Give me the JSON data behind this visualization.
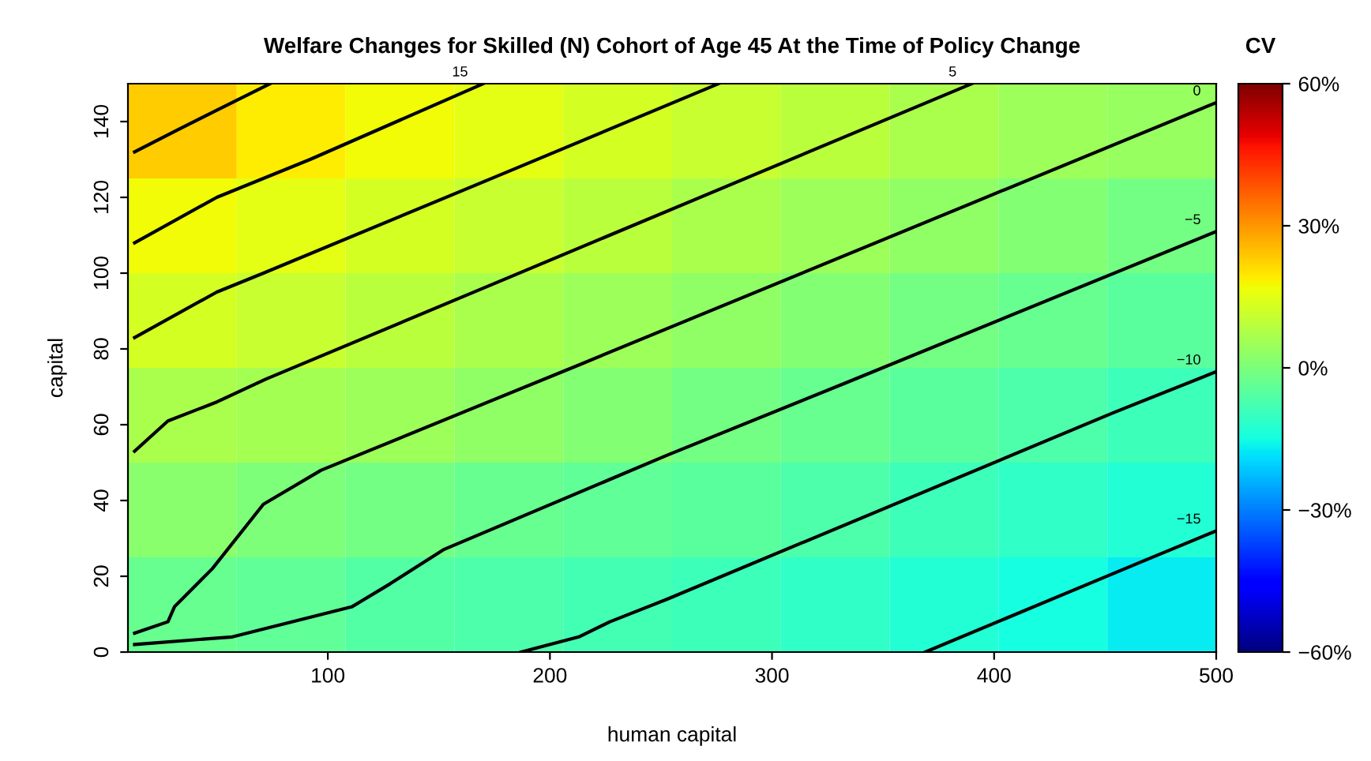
{
  "chart_data": [
    {
      "type": "heatmap",
      "clabel": "CV",
      "categories": [
        null,
        null,
        null,
        null,
        null,
        null,
        null,
        null,
        null,
        null
      ],
      "y_categories": [
        null,
        null,
        null,
        null,
        null,
        null
      ],
      "cells": [
        [
          23,
          19,
          17,
          15,
          13,
          11,
          9,
          7,
          5,
          4
        ],
        [
          17,
          15,
          13,
          11,
          9,
          7,
          5,
          3,
          1,
          -1
        ],
        [
          13,
          11,
          9,
          7,
          5,
          3,
          1,
          -1,
          -3,
          -5
        ],
        [
          7,
          6,
          5,
          3,
          1,
          -1,
          -3,
          -5,
          -7,
          -9
        ],
        [
          2,
          0,
          -1,
          -3,
          -4,
          -5,
          -7,
          -9,
          -11,
          -13
        ],
        [
          -3,
          -4,
          -6,
          -7,
          -8,
          -9,
          -11,
          -13,
          -15,
          -17
        ]
      ],
      "clim": [
        -60,
        60
      ],
      "cticks": [
        {
          "value": -60,
          "label": "−60%"
        },
        {
          "value": -30,
          "label": "−30%"
        },
        {
          "value": 0,
          "label": "0%"
        },
        {
          "value": 30,
          "label": "30%"
        },
        {
          "value": 60,
          "label": "60%"
        }
      ]
    },
    {
      "type": "line",
      "title": "Welfare Changes for Skilled (N) Cohort of Age 45 At the Time of Policy Change",
      "xlabel": "human capital",
      "ylabel": "capital",
      "xlim": [
        10,
        500
      ],
      "xticks": [
        100,
        200,
        300,
        400,
        500
      ],
      "ylim": [
        0,
        150
      ],
      "yticks": [
        0,
        20,
        40,
        60,
        80,
        100,
        120,
        140
      ],
      "grid": false,
      "legend": false,
      "marker": "none",
      "series": [
        {
          "color": "#000000",
          "x": [
            13,
            33,
            50,
            74
          ],
          "values": [
            132,
            138,
            143,
            150
          ]
        },
        {
          "name": "15",
          "color": "#000000",
          "x": [
            13,
            50,
            92,
            170
          ],
          "values": [
            108,
            120,
            130,
            150
          ]
        },
        {
          "color": "#000000",
          "x": [
            13,
            50,
            71,
            182,
            276
          ],
          "values": [
            83,
            95,
            100,
            127,
            150
          ]
        },
        {
          "name": "5",
          "color": "#000000",
          "x": [
            13,
            28,
            50,
            72,
            182,
            390
          ],
          "values": [
            53,
            61,
            66,
            72,
            99,
            150
          ]
        },
        {
          "name": "0",
          "color": "#000000",
          "x": [
            13,
            28,
            31,
            48,
            71,
            97,
            214,
            500
          ],
          "values": [
            5,
            8,
            12,
            22,
            39,
            48,
            76,
            145
          ]
        },
        {
          "name": "−5",
          "color": "#000000",
          "x": [
            13,
            57,
            111,
            128,
            152,
            253,
            333,
            500
          ],
          "values": [
            2,
            4,
            12,
            18,
            27,
            52,
            71,
            111
          ]
        },
        {
          "name": "−10",
          "color": "#000000",
          "x": [
            187,
            213,
            227,
            253,
            453,
            500
          ],
          "values": [
            0,
            4,
            8,
            14,
            63,
            74
          ]
        },
        {
          "name": "−15",
          "color": "#000000",
          "x": [
            369,
            467,
            500
          ],
          "values": [
            0,
            24,
            32
          ]
        }
      ]
    }
  ]
}
